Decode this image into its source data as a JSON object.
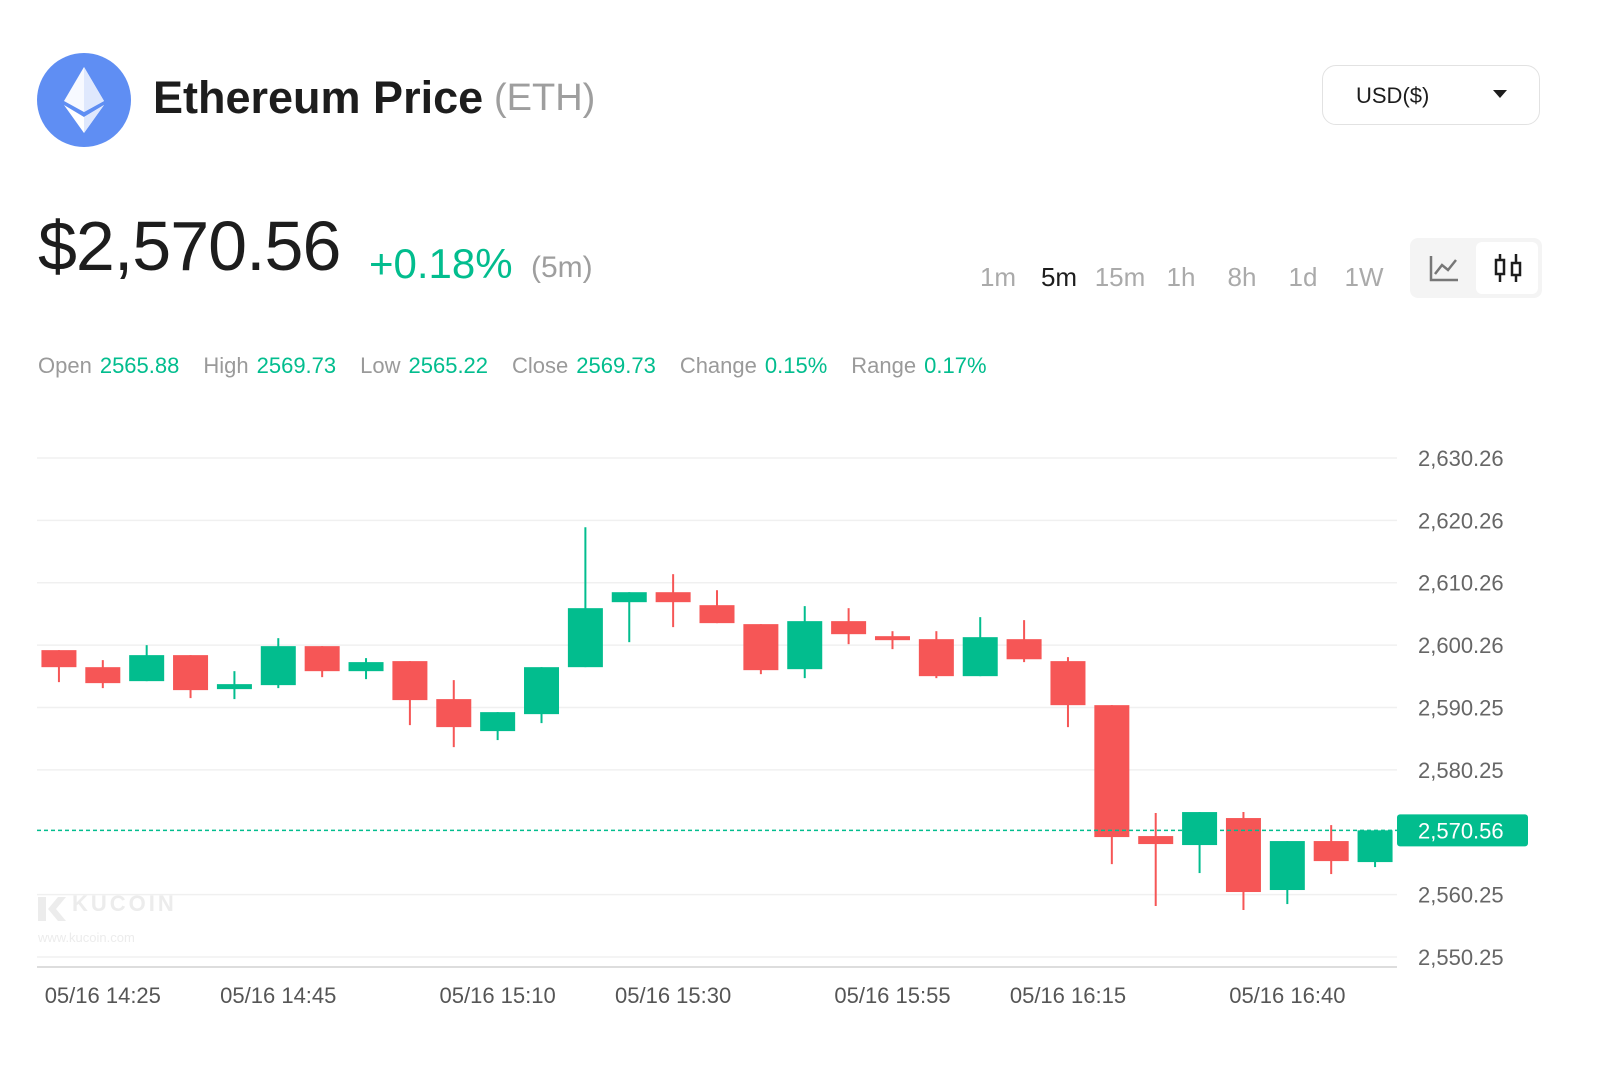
{
  "header": {
    "title": "Ethereum Price",
    "symbol": "(ETH)",
    "currency": "USD($)"
  },
  "price": {
    "value": "$2,570.56",
    "change": "+0.18%",
    "period": "(5m)"
  },
  "intervals": [
    {
      "label": "1m"
    },
    {
      "label": "5m",
      "active": true
    },
    {
      "label": "15m"
    },
    {
      "label": "1h"
    },
    {
      "label": "8h"
    },
    {
      "label": "1d"
    },
    {
      "label": "1W"
    }
  ],
  "stats": [
    {
      "label": "Open",
      "value": "2565.88"
    },
    {
      "label": "High",
      "value": "2569.73"
    },
    {
      "label": "Low",
      "value": "2565.22"
    },
    {
      "label": "Close",
      "value": "2569.73"
    },
    {
      "label": "Change",
      "value": "0.15%"
    },
    {
      "label": "Range",
      "value": "0.17%"
    }
  ],
  "chart_data": {
    "type": "candlestick",
    "categories": [
      null,
      "05/16 14:25",
      null,
      null,
      null,
      "05/16 14:45",
      null,
      null,
      null,
      null,
      "05/16 15:10",
      null,
      null,
      null,
      "05/16 15:30",
      null,
      null,
      null,
      null,
      "05/16 15:55",
      null,
      null,
      null,
      "05/16 16:15",
      null,
      null,
      null,
      null,
      "05/16 16:40",
      null,
      null
    ],
    "open": [
      2599.45,
      2596.72,
      2594.48,
      2598.65,
      2593.2,
      2593.84,
      2600.09,
      2596.08,
      2597.69,
      2591.6,
      2586.47,
      2589.19,
      2596.72,
      2607.14,
      2608.74,
      2606.66,
      2603.62,
      2596.4,
      2604.1,
      2601.69,
      2601.21,
      2595.28,
      2601.21,
      2597.69,
      2590.63,
      2569.64,
      2568.2,
      2572.53,
      2560.99,
      2568.84,
      2565.47
    ],
    "high": [
      2599.45,
      2597.85,
      2600.25,
      2598.65,
      2596.08,
      2601.37,
      2600.09,
      2598.17,
      2597.69,
      2594.64,
      2589.51,
      2596.72,
      2619.16,
      2608.74,
      2611.63,
      2609.06,
      2603.62,
      2606.5,
      2606.18,
      2602.49,
      2602.49,
      2604.74,
      2604.26,
      2598.33,
      2590.63,
      2573.33,
      2573.49,
      2573.49,
      2568.84,
      2571.4,
      2570.56
    ],
    "low": [
      2594.32,
      2593.36,
      2594.48,
      2591.76,
      2591.6,
      2593.36,
      2595.12,
      2594.8,
      2587.43,
      2583.9,
      2585.03,
      2587.75,
      2596.72,
      2600.73,
      2603.14,
      2603.78,
      2595.6,
      2594.96,
      2600.41,
      2599.61,
      2594.96,
      2595.28,
      2597.53,
      2587.11,
      2565.15,
      2558.42,
      2563.71,
      2557.78,
      2558.74,
      2563.55,
      2564.67
    ],
    "close": [
      2596.72,
      2594.16,
      2598.65,
      2593.04,
      2594.0,
      2600.09,
      2596.08,
      2597.53,
      2591.44,
      2587.11,
      2589.51,
      2596.72,
      2606.18,
      2608.74,
      2607.14,
      2603.78,
      2596.24,
      2604.1,
      2602.01,
      2601.05,
      2595.28,
      2601.53,
      2597.99,
      2590.63,
      2569.48,
      2568.36,
      2573.49,
      2560.67,
      2568.84,
      2565.63,
      2570.56
    ],
    "up_color": "#02bd8e",
    "down_color": "#f65656",
    "ylim": [
      2548.65,
      2633.14
    ],
    "yticks": [
      {
        "value": 2550.25,
        "label": "2,550.25"
      },
      {
        "value": 2560.25,
        "label": "2,560.25"
      },
      {
        "value": 2580.25,
        "label": "2,580.25"
      },
      {
        "value": 2590.25,
        "label": "2,590.25"
      },
      {
        "value": 2600.26,
        "label": "2,600.26"
      },
      {
        "value": 2610.26,
        "label": "2,610.26"
      },
      {
        "value": 2620.26,
        "label": "2,620.26"
      },
      {
        "value": 2630.26,
        "label": "2,630.26"
      }
    ],
    "grid": true,
    "last_price": {
      "value": 2570.56,
      "label": "2,570.56"
    },
    "watermark": {
      "name": "KUCOIN",
      "url": "www.kucoin.com"
    }
  }
}
